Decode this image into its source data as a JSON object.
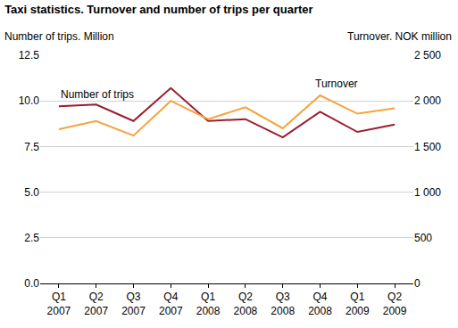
{
  "chart_data": {
    "type": "line",
    "title": "Taxi statistics. Turnover and number of trips per quarter",
    "ylabel": "Number of trips. Million",
    "y2label": "Turnover. NOK million",
    "categories": [
      "Q1 2007",
      "Q2 2007",
      "Q3 2007",
      "Q4 2007",
      "Q1 2008",
      "Q2 2008",
      "Q3 2008",
      "Q4 2008",
      "Q1 2009",
      "Q2 2009"
    ],
    "series": [
      {
        "name": "Number of trips",
        "color": "#9b1c2e",
        "axis": "y",
        "values": [
          9.7,
          9.8,
          8.9,
          10.7,
          8.9,
          9.0,
          8.0,
          9.4,
          8.3,
          8.7
        ]
      },
      {
        "name": "Turnover",
        "color": "#f5a33a",
        "axis": "y2",
        "values": [
          1690,
          1780,
          1620,
          2000,
          1800,
          1930,
          1700,
          2060,
          1860,
          1920
        ]
      }
    ],
    "ylim": [
      0,
      12.5
    ],
    "yticks": [
      {
        "value": 0,
        "label": "0.0"
      },
      2.5,
      {
        "value": 5,
        "label": "5.0"
      },
      7.5,
      {
        "value": 10,
        "label": "10.0"
      },
      12.5
    ],
    "y2lim": [
      0,
      2500
    ],
    "y2ticks": [
      0,
      500,
      {
        "value": 1000,
        "label": "1 000"
      },
      {
        "value": 1500,
        "label": "1 500"
      },
      {
        "value": 2000,
        "label": "2 000"
      },
      {
        "value": 2500,
        "label": "2 500"
      }
    ],
    "grid": true
  }
}
